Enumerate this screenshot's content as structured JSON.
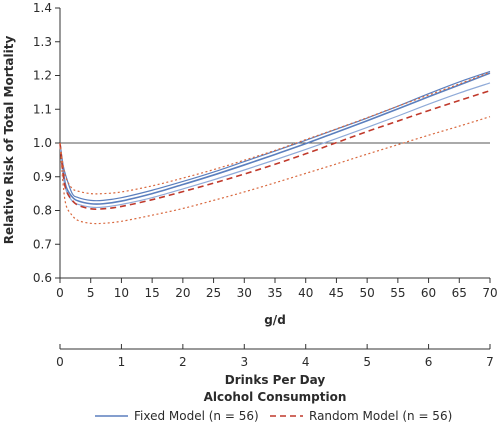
{
  "chart_data": {
    "type": "line",
    "ylabel": "Relative Risk of Total Mortality",
    "xlabel": "g/d",
    "ylim": [
      0.6,
      1.4
    ],
    "xlim": [
      0,
      70
    ],
    "yticks": [
      "0.6",
      "0.7",
      "0.8",
      "0.9",
      "1.0",
      "1.1",
      "1.2",
      "1.3",
      "1.4"
    ],
    "xticks": [
      "0",
      "5",
      "10",
      "15",
      "20",
      "25",
      "30",
      "35",
      "40",
      "45",
      "50",
      "55",
      "60",
      "65",
      "70"
    ],
    "reference_line": 1.0,
    "secondary_axis": {
      "label_units": "Drinks Per Day",
      "label_title": "Alcohol Consumption",
      "ticks": [
        "0",
        "1",
        "2",
        "3",
        "4",
        "5",
        "6",
        "7"
      ],
      "range": [
        0,
        7
      ]
    },
    "x": [
      0,
      0.5,
      1,
      2,
      3,
      5,
      7,
      10,
      15,
      20,
      25,
      30,
      35,
      40,
      45,
      50,
      55,
      60,
      65,
      70
    ],
    "series": [
      {
        "name": "Fixed Model (n = 56)",
        "role": "estimate",
        "color": "#5b7fbe",
        "dash": "solid",
        "values": [
          1.0,
          0.92,
          0.87,
          0.84,
          0.828,
          0.82,
          0.82,
          0.828,
          0.85,
          0.877,
          0.905,
          0.935,
          0.966,
          0.998,
          1.032,
          1.066,
          1.101,
          1.137,
          1.172,
          1.207
        ]
      },
      {
        "role": "ci-upper",
        "color": "#5b7fbe",
        "dash": "solid",
        "values": [
          1.0,
          0.935,
          0.9,
          0.85,
          0.838,
          0.83,
          0.83,
          0.838,
          0.86,
          0.886,
          0.914,
          0.945,
          0.976,
          1.008,
          1.041,
          1.074,
          1.109,
          1.146,
          1.181,
          1.212
        ]
      },
      {
        "role": "ci-lower",
        "color": "#8faad8",
        "dash": "solid",
        "values": [
          1.0,
          0.905,
          0.86,
          0.828,
          0.818,
          0.81,
          0.81,
          0.818,
          0.838,
          0.864,
          0.891,
          0.92,
          0.95,
          0.981,
          1.013,
          1.046,
          1.08,
          1.115,
          1.148,
          1.178
        ]
      },
      {
        "name": "Random Model (n = 56)",
        "role": "estimate",
        "color": "#c0392b",
        "dash": "dashed",
        "values": [
          1.0,
          0.91,
          0.86,
          0.83,
          0.815,
          0.805,
          0.805,
          0.812,
          0.832,
          0.856,
          0.881,
          0.908,
          0.937,
          0.968,
          1.001,
          1.034,
          1.065,
          1.096,
          1.126,
          1.155
        ]
      },
      {
        "role": "ci-upper",
        "color": "#d9693f",
        "dash": "dotted",
        "values": [
          1.0,
          0.935,
          0.895,
          0.865,
          0.857,
          0.85,
          0.85,
          0.855,
          0.873,
          0.896,
          0.921,
          0.949,
          0.978,
          1.01,
          1.042,
          1.075,
          1.109,
          1.142,
          1.175,
          1.21
        ]
      },
      {
        "role": "ci-lower",
        "color": "#d9693f",
        "dash": "dotted",
        "values": [
          1.0,
          0.88,
          0.815,
          0.785,
          0.77,
          0.762,
          0.762,
          0.768,
          0.786,
          0.806,
          0.83,
          0.855,
          0.882,
          0.91,
          0.938,
          0.967,
          0.995,
          1.023,
          1.05,
          1.078
        ]
      }
    ],
    "legend": [
      {
        "label": "Fixed Model (n = 56)",
        "color": "#5b7fbe",
        "dash": "solid"
      },
      {
        "label": "Random Model (n = 56)",
        "color": "#c0392b",
        "dash": "dashed"
      }
    ],
    "legend_position": "bottom"
  }
}
